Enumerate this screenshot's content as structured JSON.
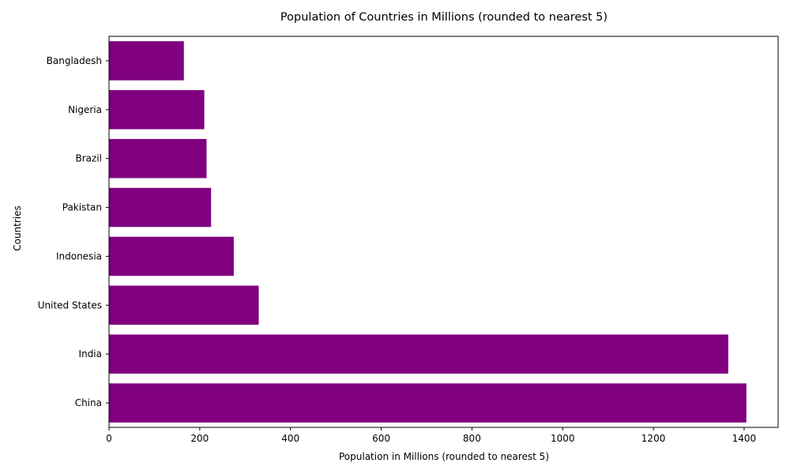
{
  "chart_data": {
    "type": "bar",
    "orientation": "horizontal",
    "title": "Population of Countries in Millions (rounded to nearest 5)",
    "xlabel": "Population in Millions (rounded to nearest 5)",
    "ylabel": "Countries",
    "categories": [
      "China",
      "India",
      "United States",
      "Indonesia",
      "Pakistan",
      "Brazil",
      "Nigeria",
      "Bangladesh"
    ],
    "values": [
      1405,
      1365,
      330,
      275,
      225,
      215,
      210,
      165
    ],
    "xlim": [
      0,
      1475
    ],
    "xticks": [
      0,
      200,
      400,
      600,
      800,
      1000,
      1200,
      1400
    ],
    "bar_color": "#800080",
    "grid": false,
    "legend": false
  }
}
